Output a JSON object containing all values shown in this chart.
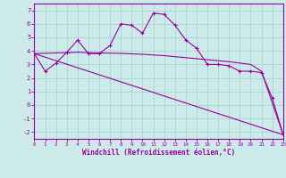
{
  "xlabel": "Windchill (Refroidissement éolien,°C)",
  "bg_color": "#cceaea",
  "grid_color": "#aad4d4",
  "line_color": "#990099",
  "xlim": [
    0,
    23
  ],
  "ylim": [
    -2.5,
    7.5
  ],
  "yticks": [
    -2,
    -1,
    0,
    1,
    2,
    3,
    4,
    5,
    6,
    7
  ],
  "xticks": [
    0,
    1,
    2,
    3,
    4,
    5,
    6,
    7,
    8,
    9,
    10,
    11,
    12,
    13,
    14,
    15,
    16,
    17,
    18,
    19,
    20,
    21,
    22,
    23
  ],
  "line1_x": [
    0,
    1,
    2,
    3,
    4,
    5,
    6,
    7,
    8,
    9,
    10,
    11,
    12,
    13,
    14,
    15,
    16,
    17,
    18,
    19,
    20,
    21,
    22,
    23
  ],
  "line1_y": [
    3.8,
    2.5,
    3.1,
    3.9,
    4.8,
    3.8,
    3.8,
    4.4,
    6.0,
    5.9,
    5.3,
    6.8,
    6.7,
    5.9,
    4.8,
    4.2,
    3.0,
    3.0,
    2.9,
    2.5,
    2.5,
    2.4,
    0.5,
    -2.2
  ],
  "line2_x": [
    0,
    23
  ],
  "line2_y": [
    3.8,
    -2.2
  ],
  "line3_x": [
    0,
    4,
    6,
    8,
    10,
    12,
    14,
    16,
    18,
    20,
    21,
    23
  ],
  "line3_y": [
    3.8,
    3.9,
    3.85,
    3.82,
    3.75,
    3.65,
    3.5,
    3.35,
    3.2,
    3.0,
    2.5,
    -2.2
  ]
}
